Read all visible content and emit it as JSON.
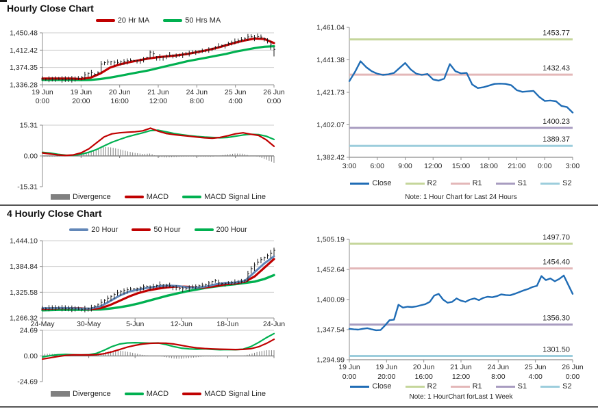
{
  "panels": {
    "hourly": {
      "title": "Hourly Close Chart",
      "legend_ma": [
        {
          "label": "20 Hr MA",
          "color": "#c00000",
          "swatch": "line"
        },
        {
          "label": "50 Hrs MA",
          "color": "#00b050",
          "swatch": "line"
        }
      ],
      "legend_macd": [
        {
          "label": "Divergence",
          "color": "#808080",
          "swatch": "bar"
        },
        {
          "label": "MACD",
          "color": "#c00000",
          "swatch": "line"
        },
        {
          "label": "MACD Signal Line",
          "color": "#00b050",
          "swatch": "line"
        }
      ]
    },
    "four_hourly": {
      "title": "4 Hourly Close Chart",
      "legend_ma": [
        {
          "label": "20 Hour",
          "color": "#6287b8",
          "swatch": "line"
        },
        {
          "label": "50 Hour",
          "color": "#c00000",
          "swatch": "line"
        },
        {
          "label": "200 Hour",
          "color": "#00b050",
          "swatch": "line"
        }
      ],
      "legend_macd": [
        {
          "label": "Divergence",
          "color": "#808080",
          "swatch": "bar"
        },
        {
          "label": "MACD",
          "color": "#00b050",
          "swatch": "line"
        },
        {
          "label": "MACD Signal Line",
          "color": "#c00000",
          "swatch": "line"
        }
      ]
    },
    "right_top": {
      "note": "Note: 1 Hour Chart for Last 24 Hours",
      "legend": [
        {
          "label": "Close",
          "color": "#1f6cb5",
          "swatch": "thin"
        },
        {
          "label": "R2",
          "color": "#c5d69b",
          "swatch": "thin"
        },
        {
          "label": "R1",
          "color": "#e3b7b8",
          "swatch": "thin"
        },
        {
          "label": "S1",
          "color": "#a89cc0",
          "swatch": "thin"
        },
        {
          "label": "S2",
          "color": "#9ccddc",
          "swatch": "thin"
        }
      ]
    },
    "right_bottom": {
      "note": "Note: 1 HourChart forLast 1 Week",
      "legend": [
        {
          "label": "Close",
          "color": "#1f6cb5",
          "swatch": "thin"
        },
        {
          "label": "R2",
          "color": "#c5d69b",
          "swatch": "thin"
        },
        {
          "label": "R1",
          "color": "#e3b7b8",
          "swatch": "thin"
        },
        {
          "label": "S1",
          "color": "#a89cc0",
          "swatch": "thin"
        },
        {
          "label": "S2",
          "color": "#9ccddc",
          "swatch": "thin"
        }
      ]
    }
  },
  "chart_data": [
    {
      "id": "chart-a",
      "type": "line",
      "title": "Hourly Close Chart",
      "ylim": [
        1336.28,
        1450.48
      ],
      "yticks": [
        "1,450.48",
        "1,412.42",
        "1,374.35",
        "1,336.28"
      ],
      "xticks": [
        [
          "19 Jun",
          "0:00"
        ],
        [
          "19 Jun",
          "20:00"
        ],
        [
          "20 Jun",
          "16:00"
        ],
        [
          "21 Jun",
          "12:00"
        ],
        [
          "24 Jun",
          "8:00"
        ],
        [
          "25 Jun",
          "4:00"
        ],
        [
          "26 Jun",
          "0:00"
        ]
      ],
      "grid": true,
      "series": [
        {
          "name": "50 Hrs MA",
          "type": "line",
          "color": "#00b050",
          "width": 3.2,
          "values": [
            1347,
            1347,
            1347,
            1347,
            1346.5,
            1347,
            1349,
            1352,
            1356,
            1360,
            1364,
            1368,
            1373,
            1378,
            1383,
            1388,
            1392,
            1396,
            1400,
            1404,
            1409,
            1413,
            1417,
            1420,
            1421
          ]
        },
        {
          "name": "20 Hr MA",
          "type": "line",
          "color": "#c00000",
          "width": 3.2,
          "values": [
            1350,
            1350,
            1350,
            1350,
            1349,
            1352,
            1361,
            1374,
            1381,
            1386,
            1390,
            1394,
            1397,
            1399,
            1401,
            1404,
            1408,
            1412,
            1417,
            1423,
            1429,
            1434,
            1438,
            1437,
            1428
          ]
        },
        {
          "name": "Close",
          "type": "candle",
          "color": "#1a1a1a",
          "values": [
            1349,
            1349,
            1348.5,
            1349,
            1348,
            1348,
            1348.5,
            1349,
            1353,
            1361,
            1363,
            1357,
            1384,
            1386,
            1387,
            1385,
            1387,
            1389,
            1390,
            1389,
            1391,
            1393,
            1411,
            1398,
            1396,
            1399,
            1402,
            1400,
            1402,
            1404,
            1406,
            1408,
            1410,
            1412,
            1415,
            1418,
            1421,
            1424,
            1428,
            1431,
            1434,
            1438,
            1443,
            1440,
            1443,
            1438,
            1432,
            1414
          ]
        }
      ]
    },
    {
      "id": "chart-b",
      "type": "line",
      "title": "Hourly MACD",
      "ylim": [
        -15.31,
        15.31
      ],
      "yticks": [
        "15.31",
        "0.00",
        "-15.31"
      ],
      "axis": "zero",
      "zero_ticks": 7,
      "series": [
        {
          "name": "Divergence",
          "type": "divergence",
          "color": "#808080",
          "from": [
            "MACD",
            "MACD Signal Line"
          ]
        },
        {
          "name": "MACD Signal Line",
          "type": "line",
          "color": "#00b050",
          "width": 2.2,
          "values": [
            1.8,
            1.4,
            0.8,
            0.4,
            0.3,
            0.8,
            1.8,
            3.2,
            5.0,
            6.8,
            8.2,
            9.5,
            10.5,
            11.5,
            12.6,
            12.8,
            12.0,
            11.2,
            10.6,
            10.1,
            9.7,
            9.4,
            9.2,
            9.0,
            9.2,
            9.8,
            10.4,
            10.8,
            10.6,
            9.8,
            8.2
          ]
        },
        {
          "name": "MACD",
          "type": "line",
          "color": "#c00000",
          "width": 2.2,
          "values": [
            1.5,
            1.0,
            0.5,
            0.2,
            0.5,
            1.5,
            3.5,
            6.5,
            9.5,
            11.0,
            11.5,
            11.8,
            12.0,
            12.5,
            13.8,
            12.3,
            11.2,
            10.6,
            10.2,
            9.8,
            9.4,
            9.0,
            8.8,
            9.2,
            10.0,
            11.0,
            11.5,
            10.8,
            10.2,
            8.0,
            4.8
          ]
        }
      ]
    },
    {
      "id": "chart-c",
      "type": "line",
      "title": "1 Hour Close with Pivot Levels (Last 24 Hours)",
      "ylim": [
        1382.42,
        1461.04
      ],
      "yticks": [
        "1,461.04",
        "1,441.38",
        "1,421.73",
        "1,402.07",
        "1,382.42"
      ],
      "xticks": [
        "3:00",
        "6:00",
        "9:00",
        "12:00",
        "15:00",
        "18:00",
        "21:00",
        "0:00",
        "3:00"
      ],
      "grid": false,
      "pivots": [
        {
          "name": "R2",
          "label": "1453.77",
          "value": 1453.77,
          "color": "#c5d69b"
        },
        {
          "name": "R1",
          "label": "1432.43",
          "value": 1432.43,
          "color": "#e3b7b8"
        },
        {
          "name": "S1",
          "label": "1400.23",
          "value": 1400.23,
          "color": "#a89cc0"
        },
        {
          "name": "S2",
          "label": "1389.37",
          "value": 1389.37,
          "color": "#9ccddc"
        }
      ],
      "series": [
        {
          "name": "Close",
          "type": "line",
          "color": "#1f6cb5",
          "width": 2.4,
          "values": [
            1428.5,
            1434,
            1440.5,
            1437,
            1434.5,
            1433,
            1432.3,
            1432.6,
            1433.5,
            1436.5,
            1439.5,
            1435.5,
            1433,
            1432.3,
            1432.8,
            1429.5,
            1428.8,
            1430,
            1438.8,
            1434.5,
            1433.2,
            1433.5,
            1426.5,
            1424.3,
            1424.8,
            1425.8,
            1426.8,
            1427,
            1426.8,
            1426,
            1423,
            1422,
            1422.3,
            1422.6,
            1419,
            1416.5,
            1416.8,
            1416.3,
            1413.5,
            1412.8,
            1409.5
          ]
        }
      ]
    },
    {
      "id": "chart-d",
      "type": "line",
      "title": "4 Hourly Close Chart",
      "ylim": [
        1266.32,
        1444.1
      ],
      "yticks": [
        "1,444.10",
        "1,384.84",
        "1,325.58",
        "1,266.32"
      ],
      "xticks": [
        "24-May",
        "30-May",
        "5-Jun",
        "12-Jun",
        "18-Jun",
        "24-Jun"
      ],
      "grid": true,
      "series": [
        {
          "name": "200 Hour",
          "type": "line",
          "color": "#00b050",
          "width": 3.4,
          "values": [
            1284,
            1284.5,
            1285,
            1285,
            1285,
            1285.5,
            1286,
            1288,
            1291,
            1295,
            1300,
            1306,
            1312,
            1318,
            1323,
            1328,
            1332,
            1336,
            1339,
            1342,
            1344,
            1347,
            1350,
            1356,
            1365
          ]
        },
        {
          "name": "50 Hour",
          "type": "line",
          "color": "#c00000",
          "width": 3.2,
          "values": [
            1287,
            1288,
            1289,
            1289,
            1288.5,
            1287,
            1289,
            1296,
            1306,
            1316,
            1324,
            1330,
            1334,
            1337,
            1339,
            1338,
            1336,
            1337,
            1340,
            1344,
            1346,
            1350,
            1362,
            1382,
            1402
          ]
        },
        {
          "name": "20 Hour",
          "type": "line",
          "color": "#6287b8",
          "width": 3.0,
          "values": [
            1289,
            1289,
            1289.5,
            1289,
            1288,
            1288,
            1293,
            1305,
            1318,
            1327,
            1332,
            1336,
            1339,
            1341,
            1340,
            1337,
            1336,
            1339,
            1344,
            1347,
            1348,
            1352,
            1372,
            1392,
            1408
          ]
        },
        {
          "name": "Close",
          "type": "candle",
          "color": "#1a1a1a",
          "values": [
            1288,
            1289,
            1290,
            1289,
            1288.5,
            1288,
            1287.5,
            1287,
            1286.5,
            1287.5,
            1290,
            1296,
            1303,
            1310,
            1317,
            1323,
            1328,
            1331,
            1333,
            1334,
            1336,
            1340,
            1337,
            1341,
            1343,
            1342,
            1340,
            1337,
            1334,
            1333,
            1336,
            1339,
            1341,
            1343,
            1348,
            1353,
            1345,
            1346,
            1347,
            1348,
            1349,
            1352,
            1375,
            1388,
            1398,
            1405,
            1412,
            1422
          ]
        }
      ]
    },
    {
      "id": "chart-e",
      "type": "line",
      "title": "4 Hourly MACD",
      "ylim": [
        -24.69,
        24.69
      ],
      "yticks": [
        "24.69",
        "0.00",
        "-24.69"
      ],
      "axis": "zero",
      "zero_ticks": 6,
      "series": [
        {
          "name": "Divergence",
          "type": "divergence",
          "color": "#808080",
          "from": [
            "MACD",
            "MACD Signal Line"
          ]
        },
        {
          "name": "MACD",
          "type": "line",
          "color": "#00b050",
          "width": 2.2,
          "values": [
            -1.0,
            0.3,
            1.2,
            1.5,
            1.2,
            1.0,
            1.2,
            2.5,
            5.5,
            9.0,
            11.5,
            12.5,
            12.8,
            12.5,
            12.3,
            12.5,
            11.0,
            9.0,
            7.5,
            6.8,
            6.5,
            6.8,
            6.3,
            6.0,
            6.2,
            6.0,
            6.5,
            9.0,
            13.0,
            17.5,
            21.5
          ]
        },
        {
          "name": "MACD Signal Line",
          "type": "line",
          "color": "#c00000",
          "width": 2.2,
          "values": [
            -3.0,
            -1.8,
            -0.5,
            0.5,
            1.0,
            1.0,
            1.0,
            1.2,
            2.2,
            4.0,
            6.2,
            8.5,
            10.2,
            11.5,
            12.2,
            12.4,
            12.3,
            11.5,
            10.2,
            8.8,
            7.8,
            7.2,
            6.8,
            6.5,
            6.3,
            6.2,
            6.3,
            7.0,
            8.8,
            12.0,
            16.0
          ]
        }
      ]
    },
    {
      "id": "chart-f",
      "type": "line",
      "title": "1 Hour Close with Pivot Levels (Last 1 Week)",
      "ylim": [
        1294.99,
        1505.19
      ],
      "yticks": [
        "1,505.19",
        "1,452.64",
        "1,400.09",
        "1,347.54",
        "1,294.99"
      ],
      "xticks": [
        [
          "19 Jun",
          "0:00"
        ],
        [
          "19 Jun",
          "20:00"
        ],
        [
          "20 Jun",
          "16:00"
        ],
        [
          "21 Jun",
          "12:00"
        ],
        [
          "24 Jun",
          "8:00"
        ],
        [
          "25 Jun",
          "4:00"
        ],
        [
          "26 Jun",
          "0:00"
        ]
      ],
      "grid": false,
      "pivots": [
        {
          "name": "R2",
          "label": "1497.70",
          "value": 1497.7,
          "color": "#c5d69b"
        },
        {
          "name": "R1",
          "label": "1454.40",
          "value": 1454.4,
          "color": "#e3b7b8"
        },
        {
          "name": "S1",
          "label": "1356.30",
          "value": 1356.3,
          "color": "#a89cc0"
        },
        {
          "name": "S2",
          "label": "1301.50",
          "value": 1301.5,
          "color": "#9ccddc"
        }
      ],
      "series": [
        {
          "name": "Close",
          "type": "line",
          "color": "#1f6cb5",
          "width": 2.4,
          "values": [
            1349,
            1348,
            1347.5,
            1349,
            1350,
            1348,
            1346.5,
            1346.8,
            1355,
            1364,
            1365,
            1391,
            1386,
            1387.5,
            1387,
            1388,
            1390,
            1392,
            1396,
            1407,
            1410,
            1400,
            1394.5,
            1396,
            1402,
            1398,
            1396,
            1400,
            1402,
            1399,
            1403,
            1405,
            1404,
            1406,
            1409,
            1408,
            1407.5,
            1410,
            1413,
            1416,
            1418.5,
            1422,
            1424,
            1441,
            1434,
            1437,
            1432,
            1436,
            1442,
            1426,
            1410
          ]
        }
      ]
    }
  ]
}
